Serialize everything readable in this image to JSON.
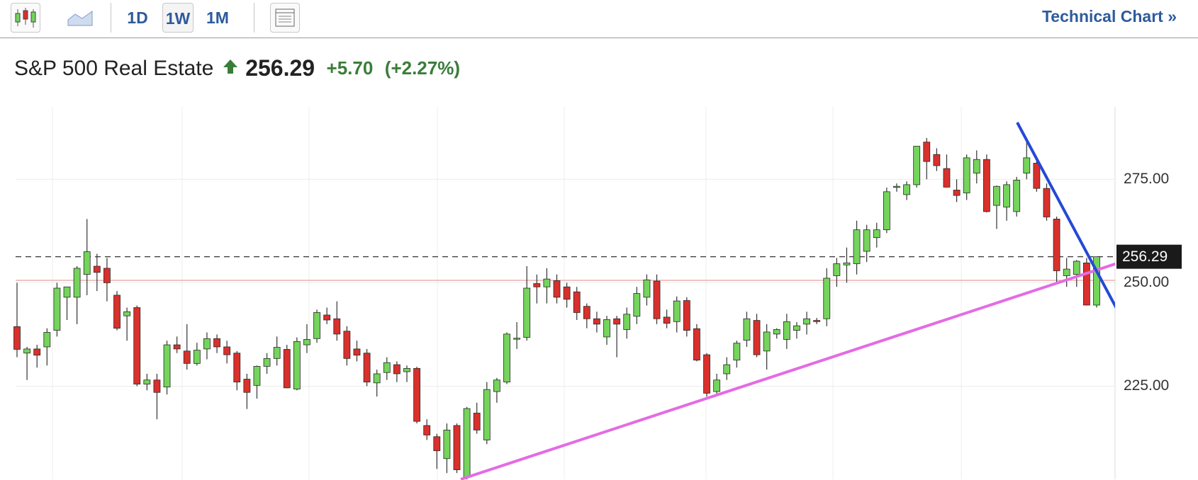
{
  "toolbar": {
    "ranges": [
      "1D",
      "1W",
      "1M"
    ],
    "link": "Technical Chart »"
  },
  "quote": {
    "name": "S&P 500 Real Estate",
    "change": "+5.70",
    "change_pct": "(+2.27%)"
  },
  "chart_data": {
    "type": "candlestick",
    "up_color": "#74d45c",
    "down_color": "#d9302c",
    "grid": true,
    "last_price": 256.29,
    "reference_line": 250.59,
    "ylim": [
      202.5,
      292.5
    ],
    "yticks": [
      {
        "value": 225,
        "label": "225.00"
      },
      {
        "value": 250,
        "label": "250.00"
      },
      {
        "value": 275,
        "label": "275.00"
      }
    ],
    "open": [
      239.4,
      233,
      234,
      234.5,
      238.5,
      246.5,
      246.5,
      252,
      254,
      253.5,
      247,
      242,
      244,
      225.5,
      226.5,
      224.8,
      235,
      233.5,
      230.5,
      234,
      236.5,
      234.5,
      233,
      226.7,
      225.2,
      229.8,
      231.7,
      233.9,
      224.3,
      235,
      236.5,
      242.2,
      241.3,
      238.3,
      234,
      233,
      225.8,
      228.3,
      230.2,
      228.5,
      229.3,
      215.5,
      212.8,
      207.5,
      215.5,
      203,
      218.5,
      212,
      223.7,
      226,
      236.5,
      236.8,
      249.8,
      249,
      250.5,
      249,
      247.8,
      244.3,
      241.3,
      236.9,
      241.3,
      238.7,
      241.9,
      246.5,
      250.4,
      241.7,
      240.6,
      245.7,
      238.9,
      232.6,
      223.7,
      228,
      231.3,
      236.1,
      240.9,
      233.5,
      237.6,
      236.3,
      238.5,
      240,
      240.9,
      241.3,
      251.7,
      254.3,
      254.6,
      257.6,
      260.9,
      262.8,
      273.1,
      271.3,
      273.7,
      284,
      281,
      277.6,
      272.4,
      271.7,
      276.5,
      279.8,
      268.7,
      268.3,
      267.2,
      276.5,
      278.9,
      272.8,
      265.4,
      251.7,
      252,
      254.8,
      244.6
    ],
    "high": [
      250,
      234.5,
      235,
      239,
      250,
      249,
      254,
      265.4,
      257,
      256,
      248,
      244,
      244.5,
      228,
      228,
      236,
      237,
      240,
      235.5,
      238,
      237.5,
      236,
      233.5,
      228,
      230,
      233,
      237,
      235,
      236.8,
      240,
      243.5,
      244,
      245.5,
      239.5,
      236,
      234,
      229,
      232,
      231,
      230,
      229.7,
      217,
      213.5,
      216,
      216,
      220,
      221,
      226,
      227,
      238,
      240.5,
      254,
      252,
      253.5,
      252,
      250,
      249,
      245,
      243,
      242,
      242,
      244,
      249,
      252,
      252,
      243.5,
      246.7,
      246.5,
      240,
      233,
      228,
      232,
      236,
      243,
      242.5,
      240,
      239,
      242.5,
      240.5,
      243,
      241.5,
      253.5,
      256,
      258.5,
      265,
      264,
      264.5,
      273,
      274,
      274.5,
      283,
      285,
      282.5,
      281,
      275,
      281,
      282,
      281,
      273.5,
      274.5,
      275.6,
      284.2,
      280,
      274,
      266,
      256,
      255.5,
      256,
      256.3
    ],
    "low": [
      232,
      226.5,
      229.5,
      230,
      237,
      241,
      240,
      247,
      248,
      245.5,
      238.5,
      236,
      225,
      224,
      217,
      223,
      233,
      229,
      230,
      231.5,
      233,
      230.5,
      224,
      219.5,
      222,
      228,
      230,
      224.5,
      224,
      233,
      235.5,
      240,
      236,
      230,
      231,
      225,
      222.5,
      226.5,
      226,
      226,
      216,
      212,
      205,
      204,
      204,
      202.5,
      213.5,
      211,
      221,
      225.5,
      234,
      236,
      245,
      245,
      245,
      244,
      241,
      239,
      238,
      235,
      232,
      236.5,
      240,
      244.5,
      240,
      239,
      238,
      237,
      231,
      222.5,
      223,
      226.5,
      229.5,
      234.5,
      232,
      229,
      236.5,
      234,
      236.5,
      237.5,
      240,
      239.5,
      249,
      250,
      252,
      255,
      258.5,
      262,
      272,
      270,
      273,
      275,
      277,
      273,
      269.5,
      270,
      274,
      267,
      263,
      265,
      266,
      275,
      272,
      265,
      250,
      249,
      249,
      244.5,
      244
    ],
    "close": [
      233.9,
      234,
      232.5,
      238,
      248.7,
      249,
      253.5,
      257.5,
      252.5,
      250,
      239,
      243,
      225.5,
      226.5,
      223.5,
      235,
      234,
      230.5,
      233.7,
      236.5,
      234.5,
      232.6,
      226,
      223.5,
      229.8,
      231.7,
      234.4,
      224.6,
      235.8,
      236.3,
      242.8,
      241,
      237.6,
      231.7,
      232.5,
      226,
      228,
      230.7,
      228,
      229.3,
      216.5,
      213.2,
      209.4,
      214.4,
      204.8,
      219.6,
      214.4,
      224.2,
      226.5,
      237.6,
      236.6,
      248.7,
      249,
      250.9,
      246.5,
      246,
      242.8,
      241.3,
      240,
      241.1,
      240,
      242.4,
      247.4,
      250.7,
      241.3,
      240.2,
      245.6,
      238.5,
      231.3,
      223.3,
      226.5,
      230.2,
      235.4,
      241.3,
      232.6,
      238.1,
      238.7,
      240.6,
      239.6,
      241.3,
      240.6,
      251.1,
      254.6,
      254.8,
      262.8,
      262.8,
      262.8,
      272,
      273.3,
      273.7,
      283,
      279.3,
      278.3,
      273.1,
      271.1,
      280.2,
      279.8,
      267.2,
      273.3,
      273.7,
      274.8,
      280.2,
      272.8,
      265.9,
      252.9,
      253.3,
      255.2,
      244.6,
      256.29
    ]
  }
}
